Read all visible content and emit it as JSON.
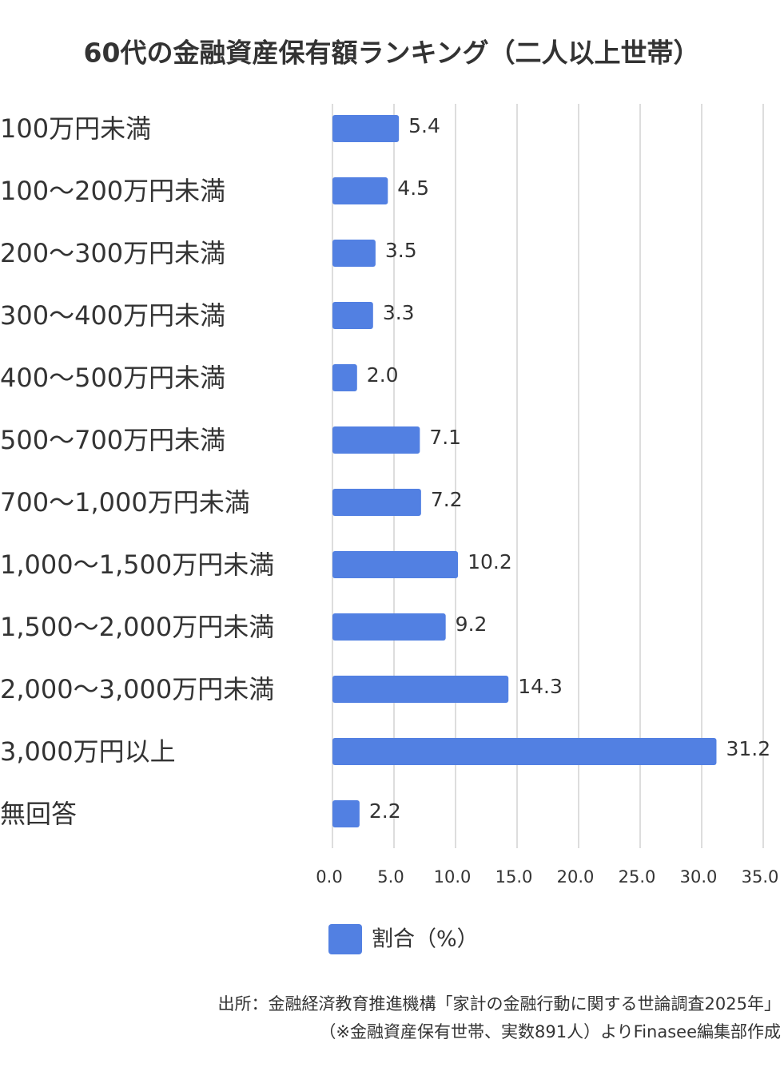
{
  "chart_data": {
    "type": "bar",
    "orientation": "horizontal",
    "title": "60代の金融資産保有額ランキング（二人以上世帯）",
    "categories": [
      "100万円未満",
      "100～200万円未満",
      "200～300万円未満",
      "300～400万円未満",
      "400～500万円未満",
      "500～700万円未満",
      "700～1,000万円未満",
      "1,000～1,500万円未満",
      "1,500～2,000万円未満",
      "2,000～3,000万円未満",
      "3,000万円以上",
      "無回答"
    ],
    "series": [
      {
        "name": "割合（%）",
        "color": "#5280e2",
        "values": [
          5.4,
          4.5,
          3.5,
          3.3,
          2.0,
          7.1,
          7.2,
          10.2,
          9.2,
          14.3,
          31.2,
          2.2
        ],
        "value_labels": [
          "5.4",
          "4.5",
          "3.5",
          "3.3",
          "2.0",
          "7.1",
          "7.2",
          "10.2",
          "9.2",
          "14.3",
          "31.2",
          "2.2"
        ]
      }
    ],
    "xlim": [
      0,
      35
    ],
    "xticks": [
      {
        "value": 0,
        "label": "0.0"
      },
      {
        "value": 5,
        "label": "5.0"
      },
      {
        "value": 10,
        "label": "10.0"
      },
      {
        "value": 15,
        "label": "15.0"
      },
      {
        "value": 20,
        "label": "20.0"
      },
      {
        "value": 25,
        "label": "25.0"
      },
      {
        "value": 30,
        "label": "30.0"
      },
      {
        "value": 35,
        "label": "35.0"
      }
    ],
    "grid": true,
    "legend": "bottom",
    "source": [
      "出所：金融経済教育推進機構「家計の金融行動に関する世論調査2025年」",
      "（※金融資産保有世帯、実数891人）よりFinasee編集部作成"
    ]
  }
}
